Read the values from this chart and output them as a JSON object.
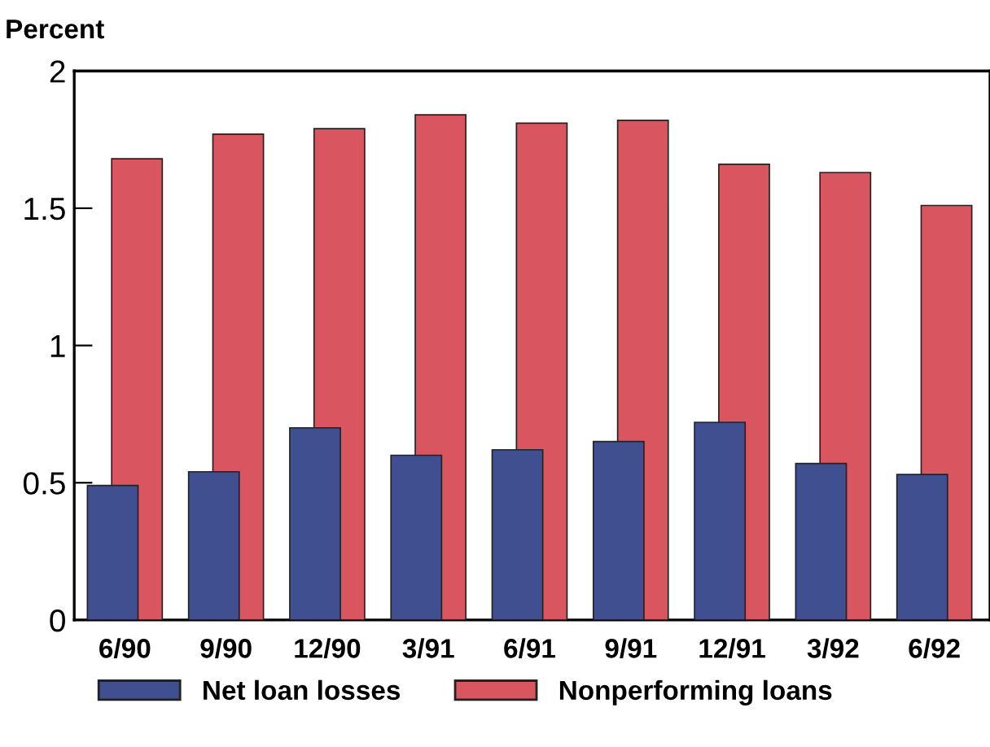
{
  "chart_data": {
    "type": "bar",
    "ylabel": "Percent",
    "categories": [
      "6/90",
      "9/90",
      "12/90",
      "3/91",
      "6/91",
      "9/91",
      "12/91",
      "3/92",
      "6/92"
    ],
    "series": [
      {
        "name": "Net loan losses",
        "color": "#3f4f8f",
        "values": [
          0.49,
          0.54,
          0.7,
          0.6,
          0.62,
          0.65,
          0.72,
          0.57,
          0.53
        ]
      },
      {
        "name": "Nonperforming loans",
        "color": "#d9555f",
        "values": [
          1.68,
          1.77,
          1.79,
          1.84,
          1.81,
          1.82,
          1.66,
          1.63,
          1.51
        ]
      }
    ],
    "ylim": [
      0,
      2
    ],
    "yticks": [
      0,
      0.5,
      1,
      1.5,
      2
    ],
    "grid": false,
    "legend": "bottom left"
  }
}
